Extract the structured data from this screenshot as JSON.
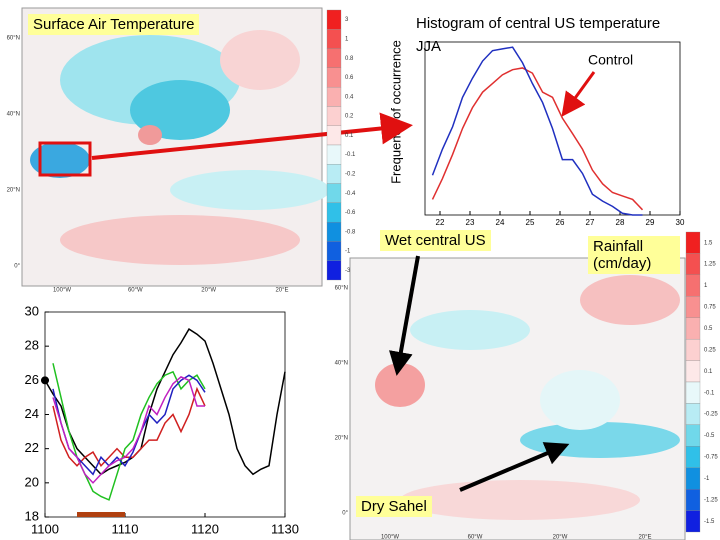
{
  "chart_data": [
    {
      "type": "line",
      "title": "Histogram of central US temperature",
      "subtitle": "JJA",
      "y_label": "Frequency of occurrence",
      "x": [
        21.75,
        22.08,
        22.42,
        22.75,
        23.08,
        23.42,
        23.75,
        24.08,
        24.42,
        24.75,
        25.08,
        25.42,
        25.75,
        26.08,
        26.42,
        26.75,
        27.08,
        27.42,
        27.75,
        28.08,
        28.42,
        28.75
      ],
      "xlim": [
        21.5,
        30
      ],
      "xticks": [
        22,
        23,
        24,
        25,
        26,
        27,
        28,
        29,
        30
      ],
      "ylim": [
        0,
        100
      ],
      "series": [
        {
          "name": "Control",
          "color": "#e03030",
          "values": [
            9,
            21,
            35,
            50,
            62,
            71,
            76,
            81,
            84,
            85,
            82,
            71,
            68,
            56,
            47,
            38,
            26,
            18,
            13,
            11,
            9,
            3
          ]
        },
        {
          "color": "#2030c0",
          "values": [
            23,
            38,
            51,
            68,
            79,
            89,
            95,
            96,
            97,
            88,
            76,
            65,
            50,
            32,
            32,
            24,
            12,
            8,
            5,
            1,
            0,
            0
          ]
        }
      ]
    },
    {
      "type": "line",
      "x": [
        1100,
        1101,
        1102,
        1103,
        1104,
        1105,
        1106,
        1107,
        1108,
        1109,
        1110,
        1111,
        1112,
        1113,
        1114,
        1115,
        1116,
        1117,
        1118,
        1119,
        1120,
        1121,
        1122,
        1123,
        1124,
        1125,
        1126,
        1127,
        1128,
        1129,
        1130
      ],
      "xlim": [
        1100,
        1130
      ],
      "xticks": [
        1100,
        1110,
        1120,
        1130
      ],
      "ylim": [
        18,
        30
      ],
      "yticks": [
        18,
        20,
        22,
        24,
        26,
        28,
        30
      ],
      "highlight": [
        1104,
        1110
      ],
      "highlight_color": "#b04010",
      "series": [
        {
          "color": "#000000",
          "values": [
            26,
            25.2,
            24.5,
            23,
            22,
            21.5,
            21,
            20.5,
            20.8,
            21,
            21.2,
            21.5,
            22,
            24,
            25.5,
            26.5,
            27.5,
            28.2,
            29,
            28.7,
            28.3,
            27,
            25.5,
            24,
            22,
            21,
            20.5,
            20.8,
            21,
            24,
            26.5
          ]
        },
        {
          "color": "#d02020",
          "values": [
            null,
            24.5,
            22.5,
            21.5,
            21,
            21.5,
            21.8,
            21,
            21.5,
            22,
            21.5,
            21.5,
            22,
            22.5,
            22.5,
            23.5,
            24,
            23,
            24,
            25.5,
            24.5,
            null,
            null,
            null,
            null,
            null,
            null,
            null,
            null,
            null,
            null
          ]
        },
        {
          "color": "#20c020",
          "values": [
            null,
            27,
            25,
            23,
            21.5,
            20.5,
            19.5,
            19.2,
            19,
            20.5,
            22,
            22.5,
            24,
            25,
            25.8,
            26.3,
            26.5,
            25.5,
            26,
            26.3,
            25.5,
            null,
            null,
            null,
            null,
            null,
            null,
            null,
            null,
            null,
            null
          ]
        },
        {
          "color": "#2020c0",
          "values": [
            null,
            25.5,
            23.5,
            22,
            21.5,
            21,
            20.5,
            21.5,
            21,
            21.5,
            21,
            21.8,
            23,
            24,
            23.5,
            24,
            25.5,
            26,
            26.3,
            26,
            25.3,
            null,
            null,
            null,
            null,
            null,
            null,
            null,
            null,
            null,
            null
          ]
        },
        {
          "color": "#c020c0",
          "values": [
            null,
            25,
            23.5,
            22,
            21.5,
            20.5,
            20,
            20.5,
            21,
            21.3,
            21.5,
            22,
            23,
            24.5,
            24,
            25,
            25.8,
            26.2,
            26,
            24.5,
            24.5,
            null,
            null,
            null,
            null,
            null,
            null,
            null,
            null,
            null,
            null
          ]
        }
      ]
    }
  ],
  "labels": {
    "surface_air": "Surface Air Temperature",
    "wet": "Wet central US",
    "dry": "Dry Sahel",
    "rainfall": "Rainfall (cm/day)"
  },
  "top_map": {
    "lat_labels": [
      "60°N",
      "40°N",
      "20°N",
      "0°"
    ],
    "lon_labels": [
      "100°W",
      "60°W",
      "20°W",
      "20°E"
    ],
    "colorbar": [
      "3",
      "1",
      "0.8",
      "0.6",
      "0.4",
      "0.2",
      "0.1",
      "-0.1",
      "-0.2",
      "-0.4",
      "-0.6",
      "-0.8",
      "-1",
      "-3"
    ]
  },
  "bottom_map": {
    "lat_labels": [
      "60°N",
      "40°N",
      "20°N",
      "0°"
    ],
    "lon_labels": [
      "100°W",
      "60°W",
      "20°W",
      "20°E"
    ],
    "colorbar": [
      "1.5",
      "1.25",
      "1",
      "0.75",
      "0.5",
      "0.25",
      "0.1",
      "-0.1",
      "-0.25",
      "-0.5",
      "-0.75",
      "-1",
      "-1.25",
      "-1.5"
    ]
  }
}
